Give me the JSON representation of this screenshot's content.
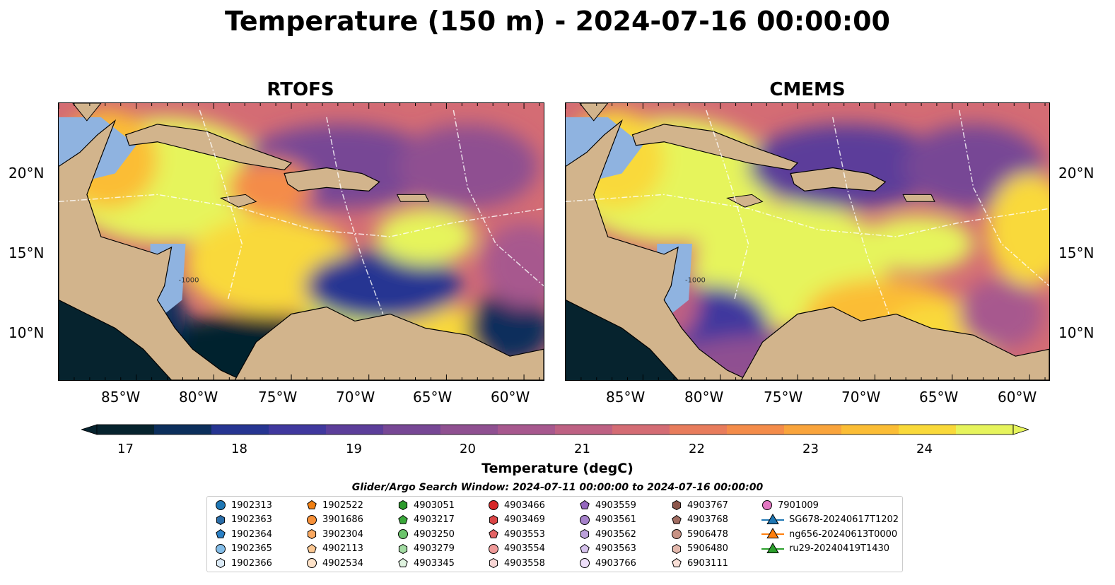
{
  "title": "Temperature (150 m) - 2024-07-16 00:00:00",
  "panels": [
    {
      "id": "rtofs",
      "title": "RTOFS"
    },
    {
      "id": "cmems",
      "title": "CMEMS"
    }
  ],
  "axes": {
    "lon_ticks": [
      "85°W",
      "80°W",
      "75°W",
      "70°W",
      "65°W",
      "60°W"
    ],
    "lat_ticks": [
      "20°N",
      "15°N",
      "10°N"
    ],
    "isobath_label": "-1000"
  },
  "colorbar": {
    "label": "Temperature (degC)",
    "ticks": [
      "17",
      "18",
      "19",
      "20",
      "21",
      "22",
      "23",
      "24"
    ],
    "min": 17,
    "max": 24,
    "extend": "both",
    "colors": [
      "#06232e",
      "#0c2f5c",
      "#263592",
      "#40389e",
      "#5c3e9a",
      "#774795",
      "#8f5091",
      "#a7588e",
      "#be6183",
      "#d46c74",
      "#e87c5c",
      "#f48c4a",
      "#f9a43c",
      "#fbbd35",
      "#f9d93a",
      "#e6f45c"
    ]
  },
  "search_window": "Glider/Argo Search Window: 2024-07-11 00:00:00 to 2024-07-16 00:00:00",
  "legend": [
    {
      "label": "1902313",
      "marker": "circle",
      "color": "#1f77b4"
    },
    {
      "label": "1902363",
      "marker": "hexagon",
      "color": "#2a6da8"
    },
    {
      "label": "1902364",
      "marker": "pentagon",
      "color": "#2b80c5"
    },
    {
      "label": "1902365",
      "marker": "circle",
      "color": "#84bde8"
    },
    {
      "label": "1902366",
      "marker": "hexagon",
      "color": "#dbeaf7"
    },
    {
      "label": "1902522",
      "marker": "pentagon",
      "color": "#f07f12"
    },
    {
      "label": "3901686",
      "marker": "circle",
      "color": "#f7913a"
    },
    {
      "label": "3902304",
      "marker": "hexagon",
      "color": "#f9a860"
    },
    {
      "label": "4902113",
      "marker": "pentagon",
      "color": "#fbc792"
    },
    {
      "label": "4902534",
      "marker": "circle",
      "color": "#fde2c8"
    },
    {
      "label": "4903051",
      "marker": "hexagon",
      "color": "#2c9a2c"
    },
    {
      "label": "4903217",
      "marker": "pentagon",
      "color": "#3aa83a"
    },
    {
      "label": "4903250",
      "marker": "circle",
      "color": "#6cc46c"
    },
    {
      "label": "4903279",
      "marker": "hexagon",
      "color": "#a3dca3"
    },
    {
      "label": "4903345",
      "marker": "pentagon",
      "color": "#dff3df"
    },
    {
      "label": "4903466",
      "marker": "circle",
      "color": "#d62728"
    },
    {
      "label": "4903469",
      "marker": "hexagon",
      "color": "#db4546"
    },
    {
      "label": "4903553",
      "marker": "pentagon",
      "color": "#e36364"
    },
    {
      "label": "4903554",
      "marker": "circle",
      "color": "#ef9a99"
    },
    {
      "label": "4903558",
      "marker": "hexagon",
      "color": "#f8d5d4"
    },
    {
      "label": "4903559",
      "marker": "pentagon",
      "color": "#9467bd"
    },
    {
      "label": "4903561",
      "marker": "circle",
      "color": "#a682cb"
    },
    {
      "label": "4903562",
      "marker": "hexagon",
      "color": "#bba0da"
    },
    {
      "label": "4903563",
      "marker": "pentagon",
      "color": "#d5c1ec"
    },
    {
      "label": "4903766",
      "marker": "circle",
      "color": "#eedffa"
    },
    {
      "label": "4903767",
      "marker": "hexagon",
      "color": "#8c564b"
    },
    {
      "label": "4903768",
      "marker": "pentagon",
      "color": "#a16d62"
    },
    {
      "label": "5906478",
      "marker": "circle",
      "color": "#c89284"
    },
    {
      "label": "5906480",
      "marker": "hexagon",
      "color": "#e4b9ad"
    },
    {
      "label": "6903111",
      "marker": "pentagon",
      "color": "#f8ded6"
    },
    {
      "label": "7901009",
      "marker": "circle",
      "color": "#e377c2"
    },
    {
      "label": "SG678-20240617T1202",
      "marker": "triangle-line",
      "color": "#1f77b4"
    },
    {
      "label": "ng656-20240613T0000",
      "marker": "triangle-line",
      "color": "#ff7f0e"
    },
    {
      "label": "ru29-20240419T1430",
      "marker": "triangle-line",
      "color": "#2ca02c"
    }
  ]
}
